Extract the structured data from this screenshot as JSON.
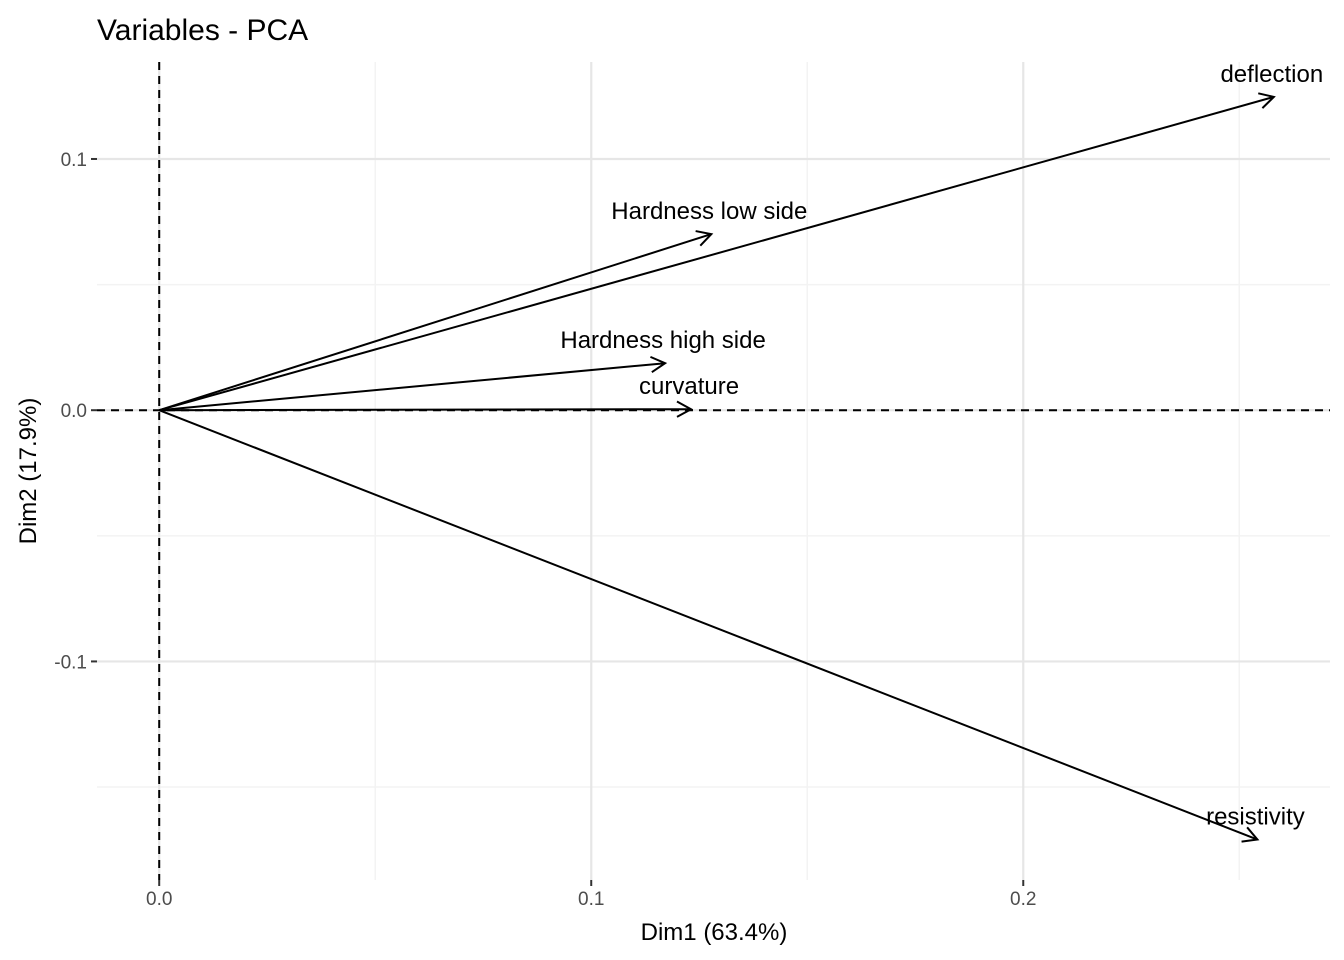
{
  "chart_data": {
    "type": "scatter",
    "subtype": "pca-variable-arrows",
    "title": "Variables - PCA",
    "xlabel": "Dim1 (63.4%)",
    "ylabel": "Dim2 (17.9%)",
    "xlim": [
      -0.0144,
      0.271
    ],
    "ylim": [
      -0.187,
      0.1386
    ],
    "xticks": [
      0.0,
      0.1,
      0.2
    ],
    "xtick_labels": [
      "0.0",
      "0.1",
      "0.2"
    ],
    "yticks": [
      -0.1,
      0.0,
      0.1
    ],
    "ytick_labels": [
      "-0.1",
      "0.0",
      "0.1"
    ],
    "x_minor": [
      0.05,
      0.15,
      0.25
    ],
    "y_minor": [
      -0.15,
      -0.05,
      0.05
    ],
    "grid": true,
    "variables": [
      {
        "name": "deflection",
        "x": 0.258,
        "y": 0.1247
      },
      {
        "name": "Hardness low side",
        "x": 0.1278,
        "y": 0.0701
      },
      {
        "name": "Hardness high side",
        "x": 0.1171,
        "y": 0.0187
      },
      {
        "name": "curvature",
        "x": 0.1231,
        "y": 0.0004
      },
      {
        "name": "resistivity",
        "x": 0.2542,
        "y": -0.1709
      }
    ]
  }
}
